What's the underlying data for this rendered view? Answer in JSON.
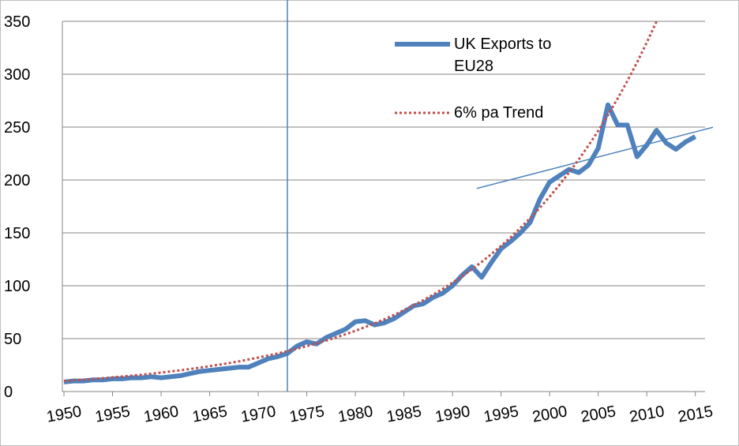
{
  "chart_data": {
    "type": "line",
    "xlim": [
      1950,
      2016
    ],
    "xticks": [
      1950,
      1955,
      1960,
      1965,
      1970,
      1975,
      1980,
      1985,
      1990,
      1995,
      2000,
      2005,
      2010,
      2015
    ],
    "ylim": [
      0,
      350
    ],
    "yticks": [
      0,
      50,
      100,
      150,
      200,
      250,
      300,
      350
    ],
    "grid": true,
    "legend": "top-right",
    "reference_line_x": 1973,
    "reference_color": "#4f81bd",
    "trend_segment": {
      "x": [
        1992.5,
        2016
      ],
      "values": [
        192,
        248
      ],
      "color": "#4f81bd"
    },
    "series": [
      {
        "name": "UK Exports to EU28",
        "color": "#4f81bd",
        "style": "solid",
        "x": [
          1950,
          1951,
          1952,
          1953,
          1954,
          1955,
          1956,
          1957,
          1958,
          1959,
          1960,
          1961,
          1962,
          1963,
          1964,
          1965,
          1966,
          1967,
          1968,
          1969,
          1970,
          1971,
          1972,
          1973,
          1974,
          1975,
          1976,
          1977,
          1978,
          1979,
          1980,
          1981,
          1982,
          1983,
          1984,
          1985,
          1986,
          1987,
          1988,
          1989,
          1990,
          1991,
          1992,
          1993,
          1994,
          1995,
          1996,
          1997,
          1998,
          1999,
          2000,
          2001,
          2002,
          2003,
          2004,
          2005,
          2006,
          2007,
          2008,
          2009,
          2010,
          2011,
          2012,
          2013,
          2014,
          2015
        ],
        "values": [
          9,
          10,
          10,
          11,
          11,
          12,
          12,
          13,
          13,
          14,
          13,
          14,
          15,
          17,
          19,
          20,
          21,
          22,
          23,
          23,
          27,
          31,
          33,
          36,
          43,
          47,
          45,
          51,
          55,
          59,
          66,
          67,
          63,
          65,
          69,
          75,
          81,
          83,
          89,
          93,
          100,
          110,
          118,
          108,
          122,
          135,
          142,
          150,
          160,
          182,
          198,
          204,
          210,
          207,
          214,
          230,
          271,
          252,
          252,
          222,
          233,
          247,
          235,
          229,
          236,
          241
        ]
      },
      {
        "name": "6% pa Trend",
        "color": "#c0504d",
        "style": "dotted",
        "x": [
          1950,
          1951,
          1952,
          1953,
          1954,
          1955,
          1956,
          1957,
          1958,
          1959,
          1960,
          1961,
          1962,
          1963,
          1964,
          1965,
          1966,
          1967,
          1968,
          1969,
          1970,
          1971,
          1972,
          1973,
          1974,
          1975,
          1976,
          1977,
          1978,
          1979,
          1980,
          1981,
          1982,
          1983,
          1984,
          1985,
          1986,
          1987,
          1988,
          1989,
          1990,
          1991,
          1992,
          1993,
          1994,
          1995,
          1996,
          1997,
          1998,
          1999,
          2000,
          2001,
          2002,
          2003,
          2004,
          2005,
          2006,
          2007,
          2008,
          2009,
          2010,
          2011
        ],
        "values": [
          10,
          10.6,
          11.2,
          11.9,
          12.6,
          13.4,
          14.2,
          15.0,
          15.9,
          16.9,
          17.9,
          19.0,
          20.1,
          21.3,
          22.6,
          24.0,
          25.4,
          26.9,
          28.5,
          30.3,
          32.1,
          34.0,
          36.0,
          38.2,
          40.5,
          42.9,
          45.5,
          48.2,
          51.1,
          54.2,
          57.4,
          60.9,
          64.5,
          68.4,
          72.5,
          76.9,
          81.5,
          86.4,
          91.5,
          97.0,
          102.9,
          109.0,
          115.6,
          122.5,
          129.9,
          137.7,
          145.9,
          154.7,
          164.0,
          173.8,
          184.2,
          195.3,
          207.0,
          219.4,
          232.6,
          246.5,
          261.3,
          277.0,
          293.6,
          311.2,
          329.9,
          349.7
        ]
      }
    ]
  }
}
